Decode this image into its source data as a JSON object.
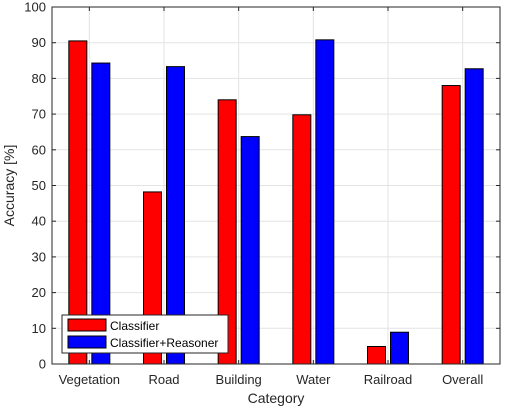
{
  "chart_data": {
    "type": "bar",
    "title": "",
    "xlabel": "Category",
    "ylabel": "Accuracy [%]",
    "categories": [
      "Vegetation",
      "Road",
      "Building",
      "Water",
      "Railroad",
      "Overall"
    ],
    "series": [
      {
        "name": "Classifier",
        "color": "#ff0000",
        "values": [
          90.5,
          48.2,
          74.0,
          69.8,
          4.9,
          78.0
        ]
      },
      {
        "name": "Classifier+Reasoner",
        "color": "#0000ff",
        "values": [
          84.3,
          83.3,
          63.7,
          90.8,
          8.9,
          82.7
        ]
      }
    ],
    "ylim": [
      0,
      100
    ],
    "yticks": [
      0,
      10,
      20,
      30,
      40,
      50,
      60,
      70,
      80,
      90,
      100
    ],
    "grid": true,
    "legend_position": "bottom-left"
  }
}
